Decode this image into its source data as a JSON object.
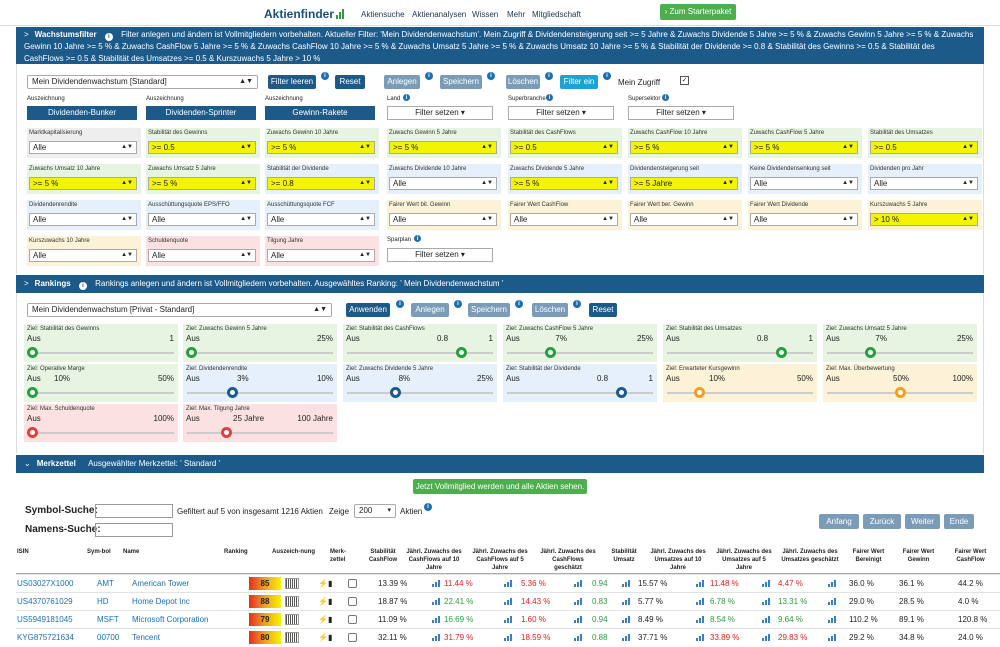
{
  "nav": {
    "logo": "Aktienfinder",
    "items": [
      "Aktiensuche",
      "Aktienanalysen",
      "Wissen",
      "Mehr",
      "Mitgliedschaft"
    ],
    "starter_button": "Zum Starterpaket"
  },
  "filter_section": {
    "title": "Wachstumsfilter",
    "description": "Filter anlegen und ändern ist Vollmitgliedern vorbehalten.  Aktueller Filter: 'Mein Dividendenwachstum'. Mein Zugriff & Dividendensteigerung seit >= 5 Jahre & Zuwachs Dividende 5 Jahre >= 5 % & Zuwachs Gewinn 5 Jahre >= 5 % & Zuwachs Gewinn 10 Jahre >= 5 % & Zuwachs CashFlow 5 Jahre >= 5 % & Zuwachs CashFlow 10 Jahre >= 5 % & Zuwachs Umsatz 5 Jahre >= 5 % & Zuwachs Umsatz 10 Jahre >= 5 % & Stabilität der Dividende >= 0.8 & Stabilität des Gewinns >= 0.5 & Stabilität des CashFlows >= 0.5 & Stabilität des Umsatzes >= 0.5 & Kurszuwachs 5 Jahre > 10 %",
    "filter_select": "Mein Dividendenwachstum [Standard]",
    "buttons": [
      "Filter leeren",
      "Reset",
      "Anlegen",
      "Speichern",
      "Löschen",
      "Filter ein"
    ],
    "my_access_label": "Mein Zugriff",
    "auszeichnung_label": "Auszeichnung",
    "auszeichnungen": [
      "Dividenden-Bunker",
      "Dividenden-Sprinter",
      "Gewinn-Rakete"
    ],
    "filter_setzen": "Filter setzen",
    "dropdown_filters": [
      {
        "label": "Land"
      },
      {
        "label": "Superbranche"
      },
      {
        "label": "Supersektor"
      }
    ],
    "fields": [
      {
        "label": "Marktkapitalisierung",
        "value": "Alle"
      },
      {
        "label": "Stabilität des Gewinns",
        "value": ">= 0.5"
      },
      {
        "label": "Zuwachs Gewinn 10 Jahre",
        "value": ">= 5 %"
      },
      {
        "label": "Zuwachs Gewinn 5 Jahre",
        "value": ">= 5 %"
      },
      {
        "label": "Stabilität des CashFlows",
        "value": ">= 0.5"
      },
      {
        "label": "Zuwachs CashFlow 10 Jahre",
        "value": ">= 5 %"
      },
      {
        "label": "Zuwachs CashFlow 5 Jahre",
        "value": ">= 5 %"
      },
      {
        "label": "Stabilität des Umsatzes",
        "value": ">= 0.5"
      },
      {
        "label": "Zuwachs Umsatz 10 Jahre",
        "value": ">= 5 %"
      },
      {
        "label": "Zuwachs Umsatz 5 Jahre",
        "value": ">= 5 %"
      },
      {
        "label": "Stabilität der Dividende",
        "value": ">= 0.8"
      },
      {
        "label": "Zuwachs Dividende 10 Jahre",
        "value": "Alle"
      },
      {
        "label": "Zuwachs Dividende 5 Jahre",
        "value": ">= 5 %"
      },
      {
        "label": "Dividendensteigerung seit",
        "value": ">= 5 Jahre"
      },
      {
        "label": "Keine Dividendensenkung seit",
        "value": "Alle"
      },
      {
        "label": "Dividenden pro Jahr",
        "value": "Alle"
      },
      {
        "label": "Dividendenrendite",
        "value": "Alle"
      },
      {
        "label": "Ausschüttungsquote EPS/FFO",
        "value": "Alle"
      },
      {
        "label": "Ausschüttungsquote FCF",
        "value": "Alle"
      },
      {
        "label": "Fairer Wert bil. Gewinn",
        "value": "Alle"
      },
      {
        "label": "Fairer Wert CashFlow",
        "value": "Alle"
      },
      {
        "label": "Fairer Wert ber. Gewinn",
        "value": "Alle"
      },
      {
        "label": "Fairer Wert Dividende",
        "value": "Alle"
      },
      {
        "label": "Kurszuwachs 5 Jahre",
        "value": "> 10 %"
      },
      {
        "label": "Kurszuwachs 10 Jahre",
        "value": "Alle"
      },
      {
        "label": "Schuldenquote",
        "value": "Alle"
      },
      {
        "label": "Tilgung Jahre",
        "value": "Alle"
      }
    ],
    "sparplan_label": "Sparplan"
  },
  "ranking_section": {
    "title": "Rankings",
    "description": "Rankings anlegen und ändern ist Vollmitgliedern vorbehalten. Ausgewähltes Ranking: ' Mein Dividendenwachstum '",
    "ranking_select": "Mein Dividendenwachstum [Privat - Standard]",
    "buttons": [
      "Anwenden",
      "Anlegen",
      "Speichern",
      "Löschen",
      "Reset"
    ],
    "sliders": [
      {
        "label": "Ziel: Stabilität des Gewinns",
        "left": "Aus",
        "mid": "",
        "right": "1",
        "value": 0.0,
        "color": "g"
      },
      {
        "label": "Ziel: Zuwachs Gewinn 5 Jahre",
        "left": "Aus",
        "mid": "",
        "right": "25%",
        "value": 0.0,
        "color": "g"
      },
      {
        "label": "Ziel: Stabilität des CashFlows",
        "left": "Aus",
        "mid": "0.8",
        "right": "1",
        "value": 0.8,
        "color": "g"
      },
      {
        "label": "Ziel: Zuwachs CashFlow 5 Jahre",
        "left": "Aus",
        "mid": "7%",
        "right": "25%",
        "value": 0.28,
        "color": "g"
      },
      {
        "label": "Ziel: Stabilität des Umsatzes",
        "left": "Aus",
        "mid": "0.8",
        "right": "1",
        "value": 0.8,
        "color": "g"
      },
      {
        "label": "Ziel: Zuwachs Umsatz 5 Jahre",
        "left": "Aus",
        "mid": "7%",
        "right": "25%",
        "value": 0.28,
        "color": "g"
      },
      {
        "label": "Ziel: Operative Marge",
        "left": "Aus",
        "mid": "10%",
        "right": "50%",
        "value": 0.0,
        "color": "g"
      },
      {
        "label": "Ziel: Dividendenrendite",
        "left": "Aus",
        "mid": "3%",
        "right": "10%",
        "value": 0.3,
        "color": "b"
      },
      {
        "label": "Ziel: Zuwachs Dividende 5 Jahre",
        "left": "Aus",
        "mid": "8%",
        "right": "25%",
        "value": 0.32,
        "color": "b"
      },
      {
        "label": "Ziel: Stabilität der Dividende",
        "left": "Aus",
        "mid": "0.8",
        "right": "1",
        "value": 0.8,
        "color": "b"
      },
      {
        "label": "Ziel: Erwarteter Kursgewinn",
        "left": "Aus",
        "mid": "10%",
        "right": "50%",
        "value": 0.2,
        "color": "o"
      },
      {
        "label": "Ziel: Max. Überbewertung",
        "left": "Aus",
        "mid": "50%",
        "right": "100%",
        "value": 0.5,
        "color": "o"
      },
      {
        "label": "Ziel: Max. Schuldenquote",
        "left": "Aus",
        "mid": "",
        "right": "100%",
        "value": 0.0,
        "color": "r"
      },
      {
        "label": "Ziel: Max. Tilgung Jahre",
        "left": "Aus",
        "mid": "25 Jahre",
        "right": "100 Jahre",
        "value": 0.25,
        "color": "r"
      }
    ]
  },
  "watchlist": {
    "title": "Merkzettel",
    "description": "Ausgewählter Merkzettel: ' Standard '",
    "vollmitglied_button": "Jetzt Vollmitglied werden und alle Aktien sehen.",
    "symbol_label": "Symbol-Suche:",
    "name_label": "Namens-Suche:",
    "filtered_text": "Gefiltert auf 5 von insgesamt 1216 Aktien",
    "show_label": "Zeige",
    "show_value": "200",
    "aktien_label": "Aktien",
    "pager": [
      "Anfang",
      "Zurück",
      "Weiter",
      "Ende"
    ],
    "columns": [
      "ISIN",
      "Sym-bol",
      "Name",
      "Ranking",
      "Auszeich-nung",
      "Merk-zettel",
      "Stabilität CashFlow",
      "Jährl. Zuwachs des CashFlows auf 10 Jahre",
      "Jährl. Zuwachs des CashFlows auf 5 Jahre",
      "Jährl. Zuwachs des CashFlows geschätzt",
      "Stabilität Umsatz",
      "Jährl. Zuwachs des Umsatzes auf 10 Jahre",
      "Jährl. Zuwachs des Umsatzes auf 5 Jahre",
      "Jährl. Zuwachs des Umsatzes geschätzt",
      "Fairer Wert Bereinigt",
      "Fairer Wert Gewinn",
      "Fairer Wert CashFlow"
    ],
    "rows": [
      {
        "isin": "US03027X1000",
        "symbol": "AMT",
        "name": "American Tower",
        "ranking": "85",
        "stab_cf": "13.39 %",
        "cf10": "11.44 %",
        "cf5": "5.36 %",
        "cfest": "0.94",
        "stab_u": "15.57 %",
        "u10": "11.48 %",
        "u5": "4.47 %",
        "fw1": "36.0 %",
        "fw2": "36.1 %",
        "fw3": "44.2 %",
        "c1": "neg",
        "c2": "neg",
        "c4": "neg",
        "c5": "neg"
      },
      {
        "isin": "US4370761029",
        "symbol": "HD",
        "name": "Home Depot Inc",
        "ranking": "88",
        "stab_cf": "18.87 %",
        "cf10": "22.41 %",
        "cf5": "14.43 %",
        "cfest": "0.83",
        "stab_u": "5.77 %",
        "u10": "6.78 %",
        "u5": "13.31 %",
        "fw1": "29.0 %",
        "fw2": "28.5 %",
        "fw3": "4.0 %",
        "c1": "pos",
        "c2": "neg",
        "c4": "pos",
        "c5": "pos"
      },
      {
        "isin": "US5949181045",
        "symbol": "MSFT",
        "name": "Microsoft Corporation",
        "ranking": "79",
        "stab_cf": "11.09 %",
        "cf10": "16.69 %",
        "cf5": "1.60 %",
        "cfest": "0.94",
        "stab_u": "8.49 %",
        "u10": "8.54 %",
        "u5": "9.64 %",
        "fw1": "110.2 %",
        "fw2": "89.1 %",
        "fw3": "120.8 %",
        "c1": "pos",
        "c2": "neg",
        "c4": "pos",
        "c5": "pos"
      },
      {
        "isin": "KYG875721634",
        "symbol": "00700",
        "name": "Tencent",
        "ranking": "80",
        "stab_cf": "32.11 %",
        "cf10": "31.79 %",
        "cf5": "18.59 %",
        "cfest": "0.88",
        "stab_u": "37.71 %",
        "u10": "33.89 %",
        "u5": "29.83 %",
        "fw1": "29.2 %",
        "fw2": "34.8 %",
        "fw3": "24.0 %",
        "c1": "neg",
        "c2": "neg",
        "c4": "neg",
        "c5": "neg"
      }
    ]
  }
}
